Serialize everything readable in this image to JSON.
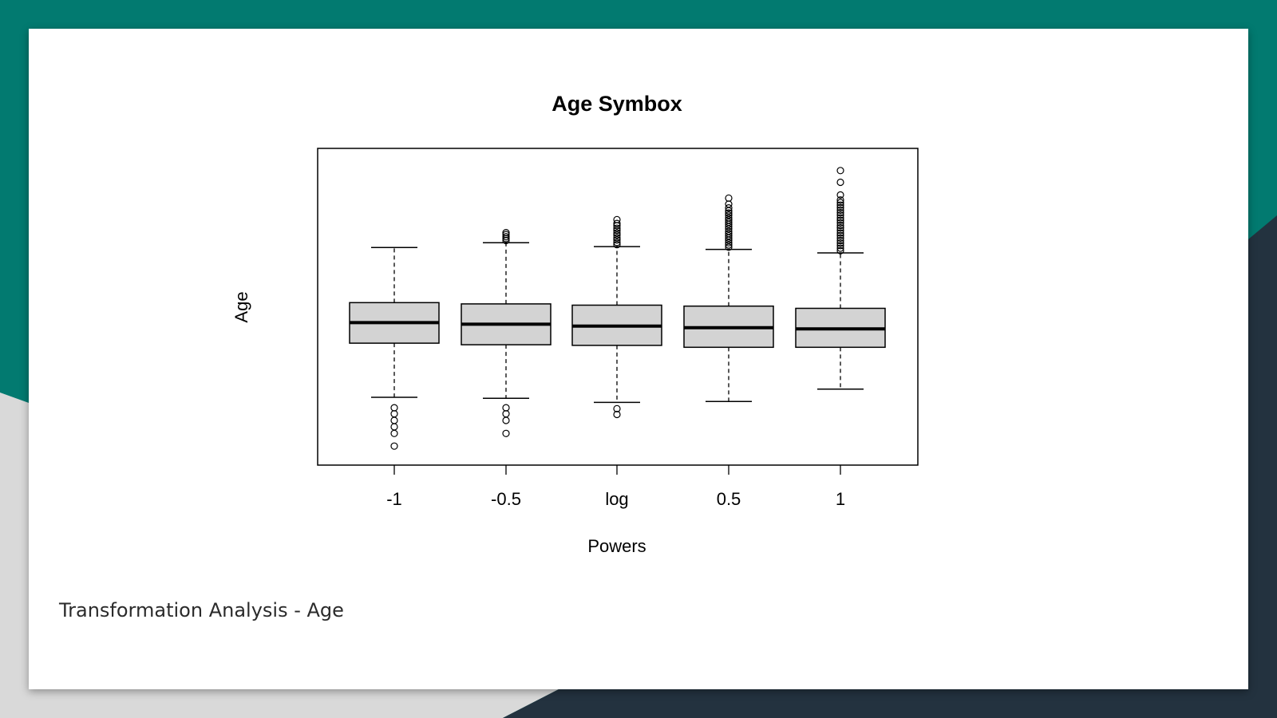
{
  "slide": {
    "caption": "Transformation Analysis - Age",
    "colors": {
      "teal": "#027a70",
      "navy": "#23323f",
      "light_gray": "#d9d9d9",
      "slide_bg": "#ffffff"
    }
  },
  "chart_data": {
    "type": "boxplot",
    "title": "Age Symbox",
    "xlabel": "Powers",
    "ylabel": "Age",
    "categories": [
      "-1",
      "-0.5",
      "log",
      "0.5",
      "1"
    ],
    "y_tick_labels_shown": false,
    "box_fill": "#d3d3d3",
    "ylim": [
      0,
      100
    ],
    "boxes": [
      {
        "label": "-1",
        "whisker_low": 21.4,
        "q1": 38.5,
        "median": 45.0,
        "q3": 51.3,
        "whisker_high": 68.7,
        "outliers": [
          18.1,
          16.2,
          14.1,
          12.1,
          10.0,
          6.0
        ]
      },
      {
        "label": "-0.5",
        "whisker_low": 21.1,
        "q1": 38.0,
        "median": 44.5,
        "q3": 50.9,
        "whisker_high": 70.2,
        "outliers": [
          18.1,
          16.2,
          14.1,
          10.0,
          70.9,
          71.5,
          72.1,
          72.8,
          73.4
        ]
      },
      {
        "label": "log",
        "whisker_low": 19.8,
        "q1": 37.8,
        "median": 43.9,
        "q3": 50.5,
        "whisker_high": 69.0,
        "outliers": [
          17.8,
          16.0,
          69.6,
          70.3,
          71.1,
          71.8,
          72.6,
          73.3,
          74.1,
          74.8,
          75.6,
          76.3,
          77.5
        ]
      },
      {
        "label": "0.5",
        "whisker_low": 20.1,
        "q1": 37.2,
        "median": 43.4,
        "q3": 50.2,
        "whisker_high": 68.1,
        "outliers": [
          68.8,
          69.5,
          70.2,
          71.0,
          71.7,
          72.4,
          73.1,
          73.8,
          74.6,
          75.3,
          76.0,
          76.7,
          77.4,
          78.1,
          78.9,
          79.6,
          80.3,
          81.2,
          82.4,
          84.3
        ]
      },
      {
        "label": "1",
        "whisker_low": 24.0,
        "q1": 37.2,
        "median": 43.0,
        "q3": 49.5,
        "whisker_high": 67.0,
        "outliers": [
          67.7,
          68.5,
          69.3,
          70.1,
          70.9,
          71.7,
          72.5,
          73.3,
          74.1,
          74.9,
          75.7,
          76.5,
          77.3,
          78.1,
          78.9,
          79.7,
          80.5,
          81.3,
          82.1,
          82.9,
          83.7,
          85.3,
          89.3,
          93.0
        ]
      }
    ]
  }
}
